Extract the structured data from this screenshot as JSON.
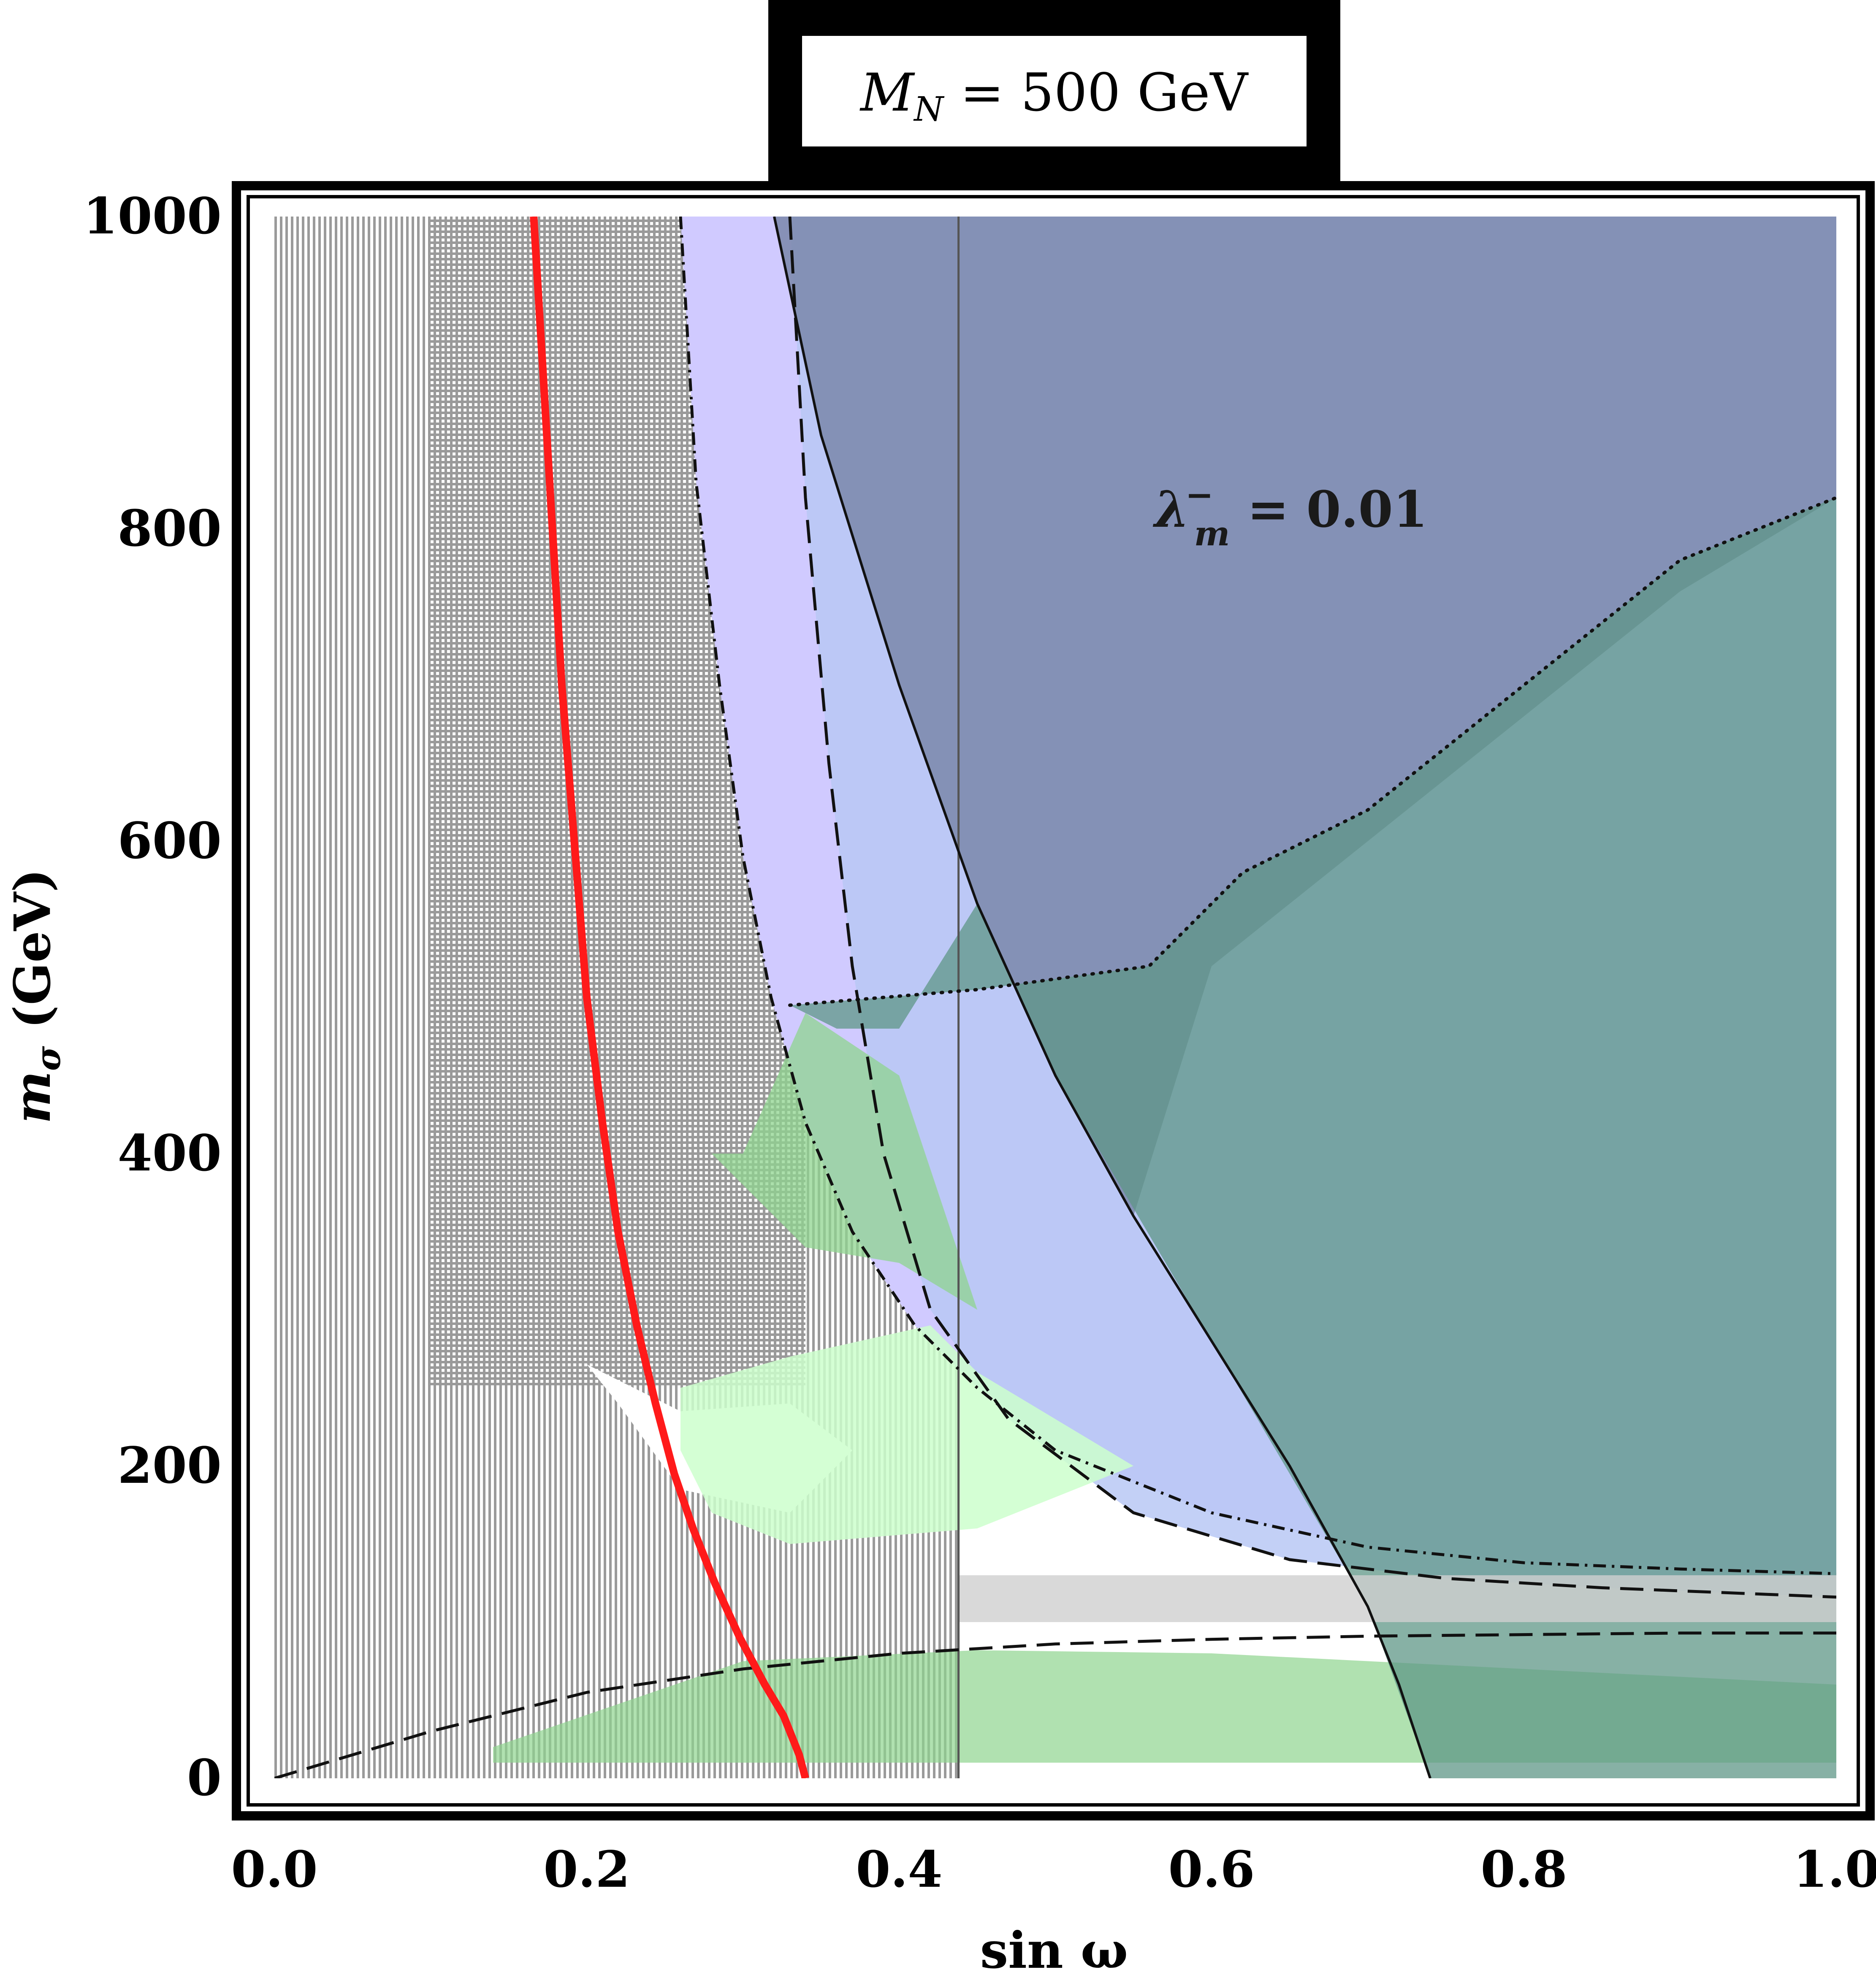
{
  "chart_data": {
    "type": "area",
    "title": {
      "main": "M",
      "sub": "N",
      "rest": " = 500 GeV"
    },
    "xlabel": "sin ω",
    "ylabel": {
      "main": "m",
      "sub": "σ",
      "rest": " (GeV)"
    },
    "annotation": {
      "main": "λ",
      "sup": "−",
      "sub": "m",
      "rest": " = 0.01"
    },
    "xlim": [
      0,
      1
    ],
    "ylim": [
      0,
      1000
    ],
    "xticks": [
      "0.0",
      "0.2",
      "0.4",
      "0.6",
      "0.8",
      "1.0"
    ],
    "yticks": [
      "0",
      "200",
      "400",
      "600",
      "800",
      "1000"
    ],
    "grid": false,
    "colors": {
      "red_curve": "#ff1a1a",
      "hatch": "#888888",
      "blue_region": "#b8c8f4",
      "lavender_region": "#d0caff",
      "dark_blue_region": "#7a87aa",
      "green_region": "#8fd48f",
      "light_green_region": "#ccffcc",
      "teal_region": "#5f9787",
      "gray_band": "#cfcfcf"
    },
    "vertical_line_x": 0.438,
    "series": [
      {
        "name": "",
        "role": "red curve",
        "x": [
          0.166,
          0.172,
          0.178,
          0.184,
          0.192,
          0.2,
          0.21,
          0.22,
          0.232,
          0.244,
          0.256,
          0.268,
          0.282,
          0.298,
          0.314,
          0.326,
          0.336,
          0.34
        ],
        "y": [
          1000,
          900,
          800,
          700,
          600,
          500,
          420,
          350,
          290,
          240,
          195,
          160,
          125,
          90,
          60,
          40,
          15,
          0
        ]
      },
      {
        "name": "",
        "role": "dash-dot boundary (lavender edge)",
        "x": [
          0.26,
          0.27,
          0.285,
          0.3,
          0.318,
          0.34,
          0.37,
          0.41,
          0.45,
          0.5,
          0.6,
          0.7,
          0.8,
          0.9,
          1.0
        ],
        "y": [
          1000,
          830,
          700,
          590,
          500,
          420,
          350,
          290,
          250,
          210,
          170,
          148,
          138,
          134,
          131
        ]
      },
      {
        "name": "",
        "role": "solid boundary",
        "x": [
          0.32,
          0.35,
          0.4,
          0.45,
          0.5,
          0.55,
          0.6,
          0.65,
          0.7,
          0.72,
          0.74
        ],
        "y": [
          1000,
          860,
          700,
          560,
          450,
          360,
          280,
          200,
          110,
          60,
          0
        ]
      },
      {
        "name": "",
        "role": "long-dashed boundary",
        "x": [
          0.33,
          0.34,
          0.355,
          0.37,
          0.39,
          0.42,
          0.47,
          0.55,
          0.65,
          0.75,
          0.85,
          0.95,
          1.0
        ],
        "y": [
          1000,
          820,
          650,
          520,
          400,
          300,
          230,
          170,
          140,
          128,
          122,
          118,
          116
        ]
      },
      {
        "name": "",
        "role": "long-dashed lower curve",
        "x": [
          0.0,
          0.1,
          0.2,
          0.3,
          0.4,
          0.5,
          0.6,
          0.7,
          0.8,
          0.9,
          1.0
        ],
        "y": [
          0,
          30,
          55,
          70,
          80,
          86,
          89,
          91,
          92,
          93,
          93
        ]
      },
      {
        "name": "",
        "role": "dotted boundary (green edge)",
        "x": [
          0.33,
          0.45,
          0.56,
          0.62,
          0.7,
          0.8,
          0.9,
          1.0
        ],
        "y": [
          495,
          505,
          520,
          580,
          620,
          700,
          780,
          820
        ]
      }
    ],
    "regions": [
      {
        "role": "horizontal hatch",
        "x_range": [
          0.1,
          0.33
        ],
        "y_range": [
          250,
          1000
        ]
      },
      {
        "role": "vertical hatch",
        "x_range": [
          0.0,
          0.438
        ],
        "y_range": [
          0,
          1000
        ]
      },
      {
        "role": "gray band",
        "x_range": [
          0.438,
          1.0
        ],
        "y_range": [
          100,
          130
        ]
      }
    ]
  }
}
